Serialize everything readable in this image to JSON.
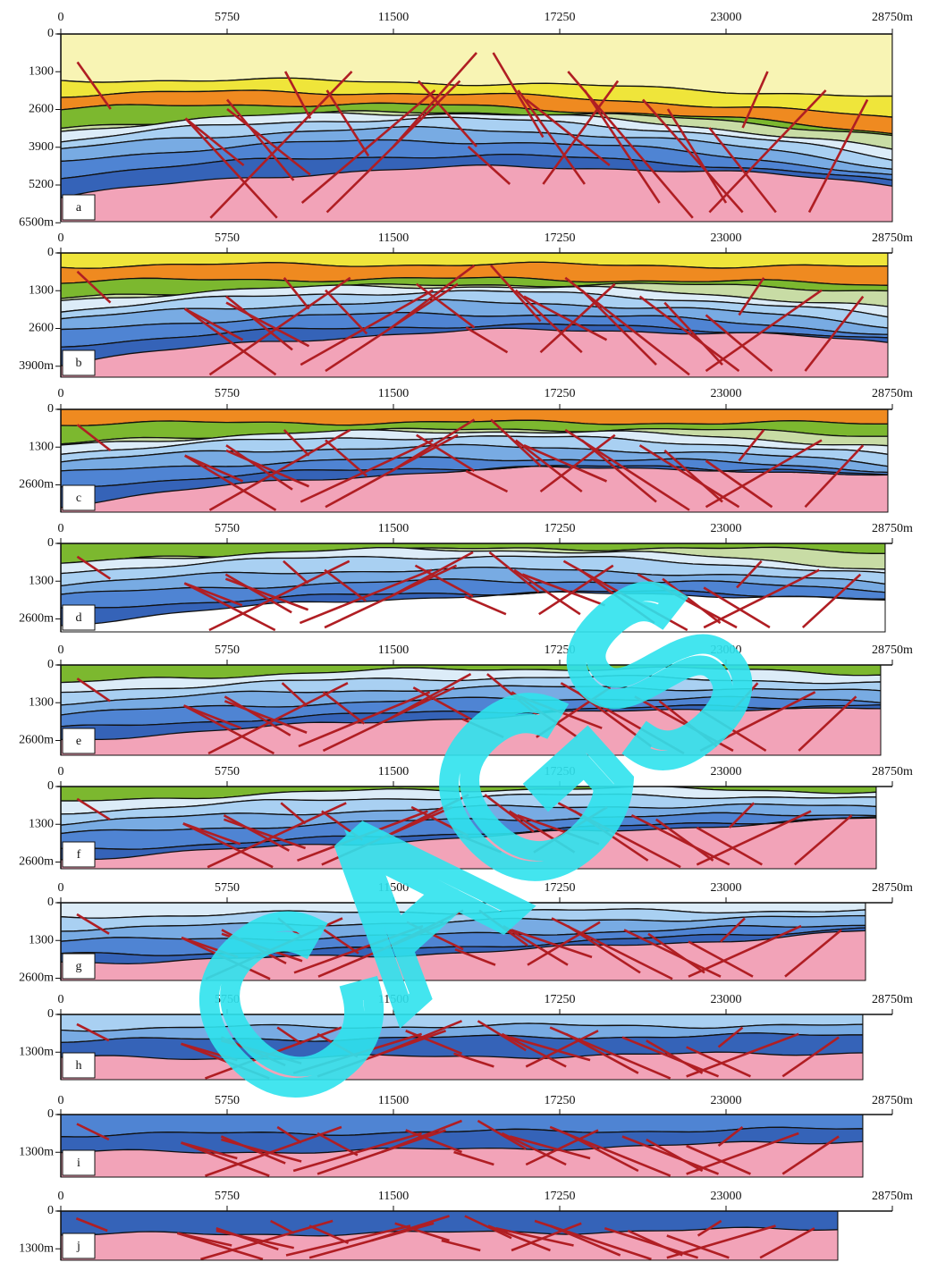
{
  "panels": [
    {
      "letter": "a",
      "xticks": [
        0,
        5750,
        11500,
        17250,
        23000,
        {
          "value": 28750,
          "label": "28750m"
        }
      ],
      "yticks": [
        0,
        1300,
        2600,
        3900,
        5200,
        {
          "value": 6500,
          "label": "6500m"
        }
      ]
    },
    {
      "letter": "b",
      "xticks": [
        0,
        5750,
        11500,
        17250,
        23000,
        {
          "value": 28750,
          "label": "28750m"
        }
      ],
      "yticks": [
        0,
        1300,
        2600,
        {
          "value": 3900,
          "label": "3900m"
        }
      ]
    },
    {
      "letter": "c",
      "xticks": [
        0,
        5750,
        11500,
        17250,
        23000,
        {
          "value": 28750,
          "label": "28750m"
        }
      ],
      "yticks": [
        0,
        1300,
        {
          "value": 2600,
          "label": "2600m"
        }
      ]
    },
    {
      "letter": "d",
      "xticks": [
        0,
        5750,
        11500,
        17250,
        23000,
        {
          "value": 28750,
          "label": "28750m"
        }
      ],
      "yticks": [
        0,
        1300,
        {
          "value": 2600,
          "label": "2600m"
        }
      ]
    },
    {
      "letter": "e",
      "xticks": [
        0,
        5750,
        11500,
        17250,
        23000,
        {
          "value": 28750,
          "label": "28750m"
        }
      ],
      "yticks": [
        0,
        1300,
        {
          "value": 2600,
          "label": "2600m"
        }
      ]
    },
    {
      "letter": "f",
      "xticks": [
        0,
        5750,
        11500,
        17250,
        23000,
        {
          "value": 28750,
          "label": "28750m"
        }
      ],
      "yticks": [
        0,
        1300,
        {
          "value": 2600,
          "label": "2600m"
        }
      ]
    },
    {
      "letter": "g",
      "xticks": [
        0,
        5750,
        11500,
        17250,
        23000,
        {
          "value": 28750,
          "label": "28750m"
        }
      ],
      "yticks": [
        0,
        1300,
        {
          "value": 2600,
          "label": "2600m"
        }
      ]
    },
    {
      "letter": "h",
      "xticks": [
        0,
        5750,
        11500,
        17250,
        23000,
        {
          "value": 28750,
          "label": "28750m"
        }
      ],
      "yticks": [
        0,
        {
          "value": 1300,
          "label": "1300m"
        }
      ]
    },
    {
      "letter": "i",
      "xticks": [
        0,
        5750,
        11500,
        17250,
        23000,
        {
          "value": 28750,
          "label": "28750m"
        }
      ],
      "yticks": [
        0,
        {
          "value": 1300,
          "label": "1300m"
        }
      ]
    },
    {
      "letter": "j",
      "xticks": [
        0,
        5750,
        11500,
        17250,
        23000,
        {
          "value": 28750,
          "label": "28750m"
        }
      ],
      "yticks": [
        0,
        {
          "value": 1300,
          "label": "1300m"
        }
      ]
    }
  ],
  "watermark": "CAGS"
}
